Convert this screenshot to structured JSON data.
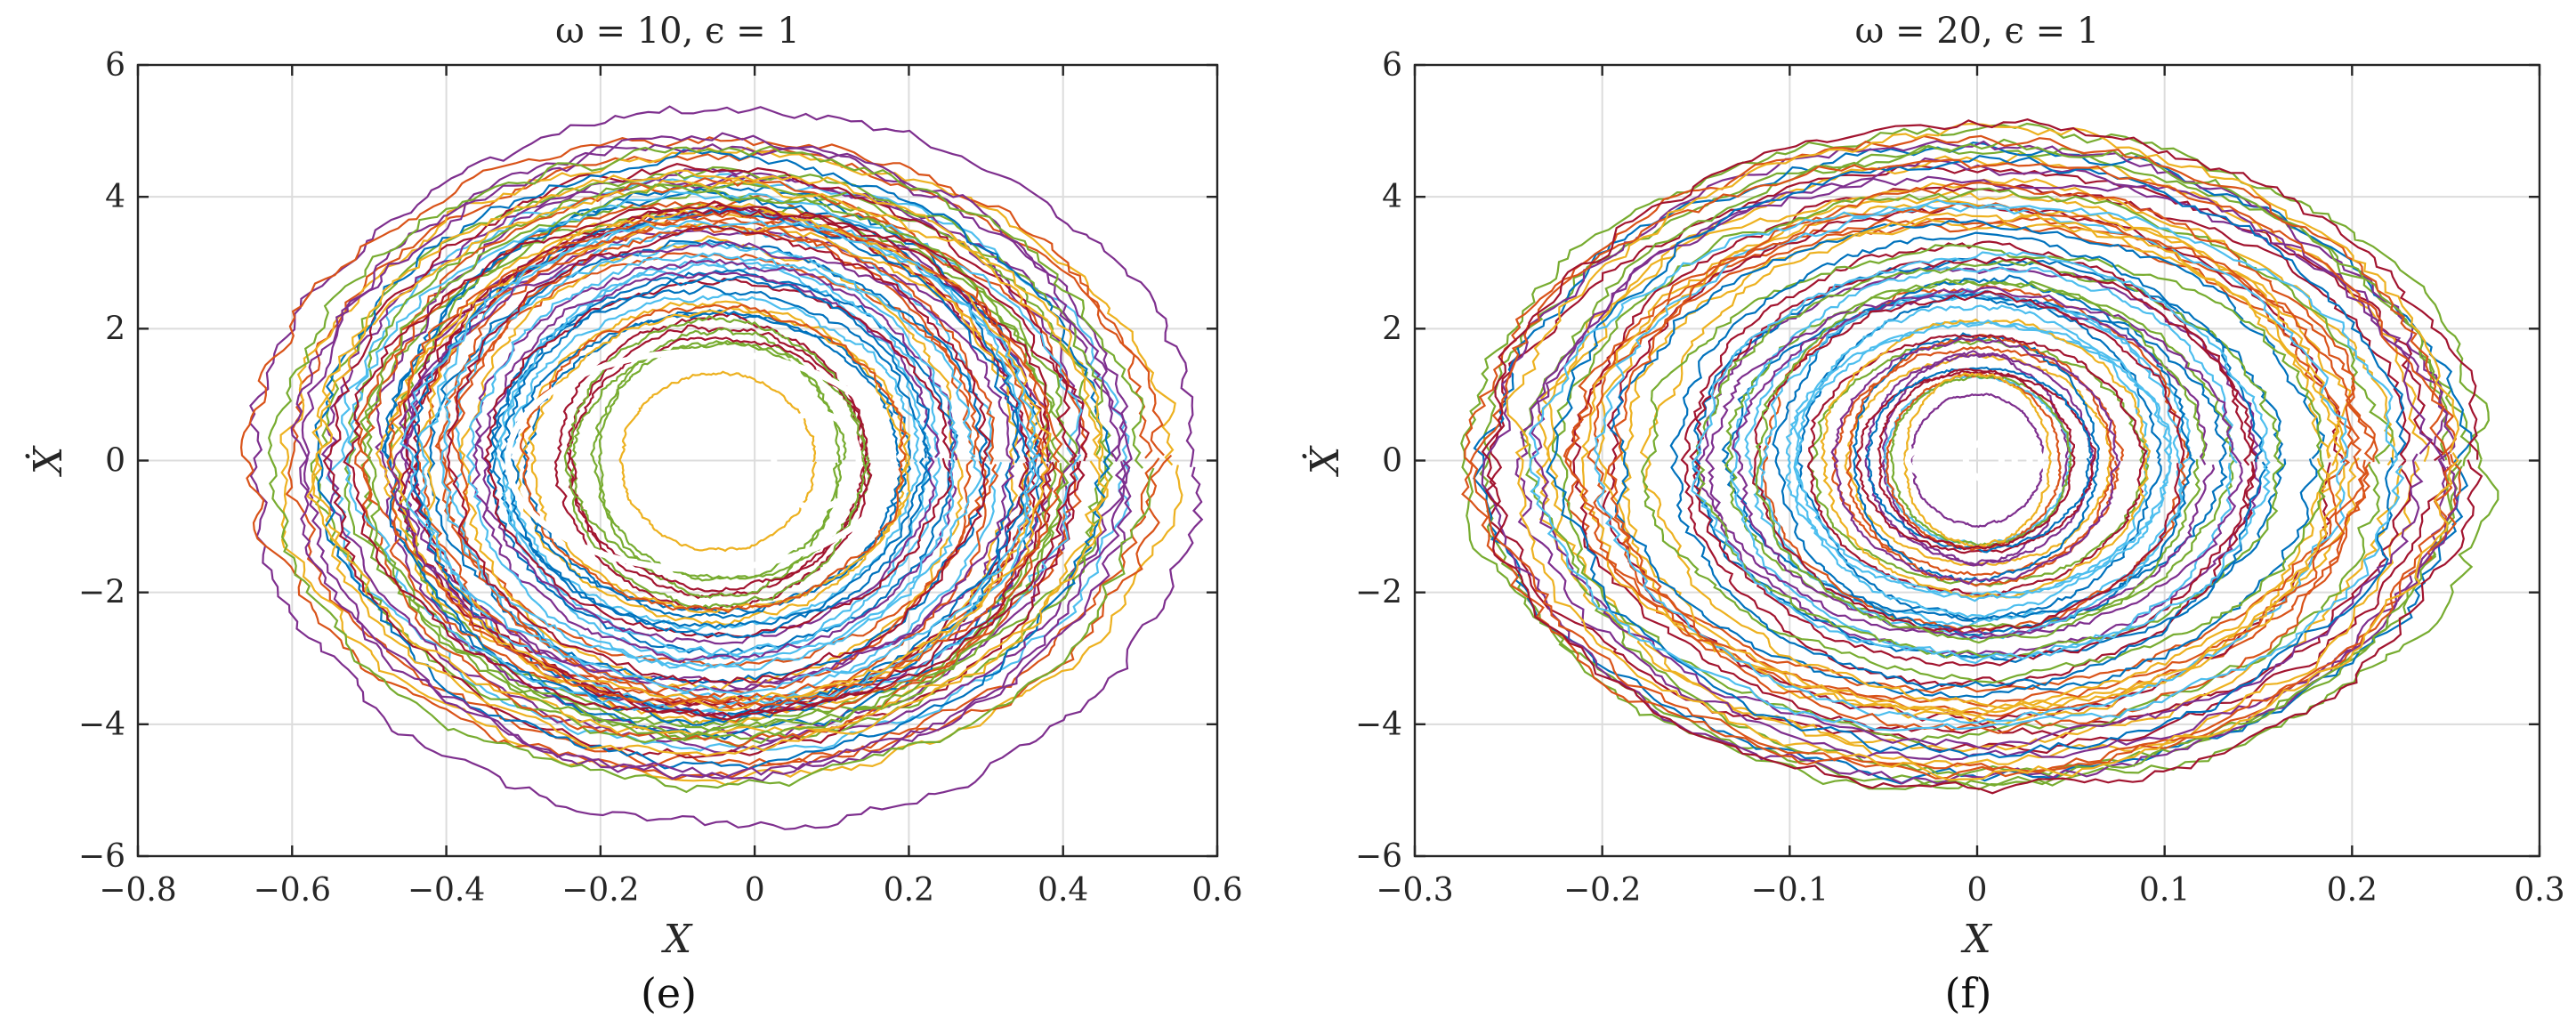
{
  "chart_data": [
    {
      "type": "line",
      "panel_label": "(e)",
      "title": "ω = 10, ϵ = 1",
      "xlabel": "X",
      "ylabel": "Ẋ",
      "xlim": [
        -0.8,
        0.6
      ],
      "ylim": [
        -6,
        6
      ],
      "xticks": [
        -0.8,
        -0.6,
        -0.4,
        -0.2,
        0,
        0.2,
        0.4,
        0.6
      ],
      "yticks": [
        -6,
        -4,
        -2,
        0,
        2,
        4,
        6
      ],
      "xtick_labels": [
        "−0.8",
        "−0.6",
        "−0.4",
        "−0.2",
        "0",
        "0.2",
        "0.4",
        "0.6"
      ],
      "ytick_labels": [
        "−6",
        "−4",
        "−2",
        "0",
        "2",
        "4",
        "6"
      ],
      "grid": true,
      "trajectory_cloud": {
        "num_trajectories": 70,
        "center": [
          -0.05,
          0
        ],
        "x_half_width_range": [
          0.12,
          0.62
        ],
        "y_half_height_range": [
          1.2,
          5.7
        ],
        "noise_fraction": 0.035
      },
      "deterministic_orbit": [
        {
          "type": "ellipse",
          "center": [
            -0.07,
            0
          ],
          "rx": 0.25,
          "ry": 1.65
        },
        {
          "type": "ellipse",
          "center": [
            0.08,
            0
          ],
          "rx": 0.055,
          "ry": 0.72
        }
      ]
    },
    {
      "type": "line",
      "panel_label": "(f)",
      "title": "ω = 20, ϵ = 1",
      "xlabel": "X",
      "ylabel": "Ẋ",
      "xlim": [
        -0.3,
        0.3
      ],
      "ylim": [
        -6,
        6
      ],
      "xticks": [
        -0.3,
        -0.2,
        -0.1,
        0,
        0.1,
        0.2,
        0.3
      ],
      "yticks": [
        -6,
        -4,
        -2,
        0,
        2,
        4,
        6
      ],
      "xtick_labels": [
        "−0.3",
        "−0.2",
        "−0.1",
        "0",
        "0.1",
        "0.2",
        "0.3"
      ],
      "ytick_labels": [
        "−6",
        "−4",
        "−2",
        "0",
        "2",
        "4",
        "6"
      ],
      "grid": true,
      "trajectory_cloud": {
        "num_trajectories": 70,
        "center": [
          0,
          0
        ],
        "x_half_width_range": [
          0.035,
          0.275
        ],
        "y_half_height_range": [
          0.9,
          5.3
        ],
        "noise_fraction": 0.035
      },
      "deterministic_orbit": [
        {
          "type": "ellipse",
          "center": [
            -0.012,
            0
          ],
          "rx": 0.025,
          "ry": 0.28
        },
        {
          "type": "ellipse",
          "center": [
            0.014,
            0
          ],
          "rx": 0.02,
          "ry": 0.35
        },
        {
          "type": "ellipse",
          "center": [
            0.024,
            0
          ],
          "rx": 0.004,
          "ry": 0.1
        }
      ]
    }
  ],
  "series_colors": [
    "#0072BD",
    "#D95319",
    "#EDB120",
    "#7E2F8E",
    "#77AC30",
    "#4DBEEE",
    "#A2142F"
  ]
}
